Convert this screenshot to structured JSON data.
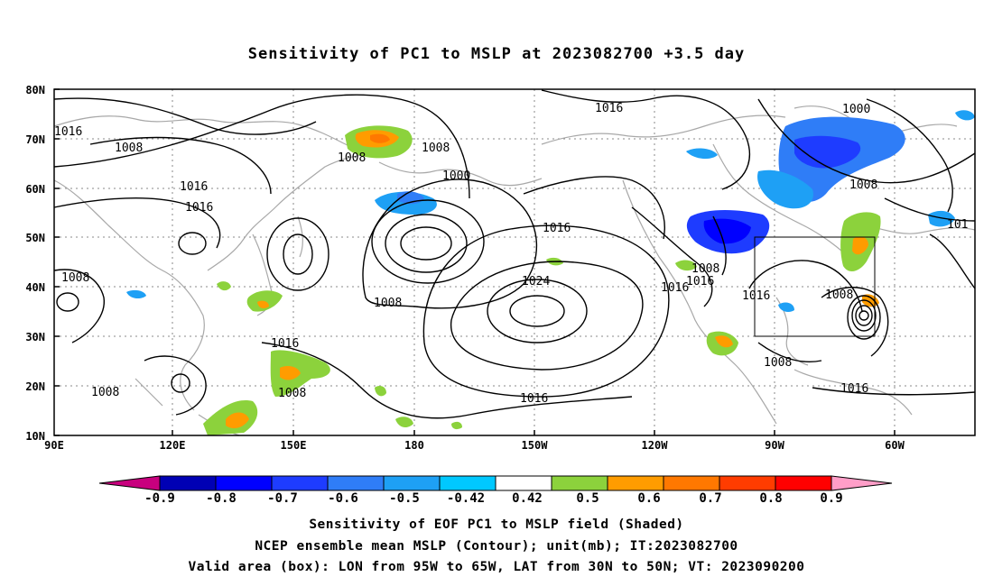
{
  "title": "Sensitivity of PC1 to MSLP at 2023082700 +3.5 day",
  "lat_ticks": [
    "80N",
    "70N",
    "60N",
    "50N",
    "40N",
    "30N",
    "20N",
    "10N"
  ],
  "lon_ticks": [
    "90E",
    "120E",
    "150E",
    "180",
    "150W",
    "120W",
    "90W",
    "60W"
  ],
  "contour_labels": [
    "1016",
    "1008",
    "1008",
    "1016",
    "1016",
    "1008",
    "1008",
    "1016",
    "1008",
    "1008",
    "1000",
    "1008",
    "1016",
    "1024",
    "1016",
    "1016",
    "1008",
    "1016",
    "1016",
    "1000",
    "1008",
    "1016",
    "1008",
    "1008",
    "1016",
    "101"
  ],
  "colorbar": {
    "labels": [
      "-0.9",
      "-0.8",
      "-0.7",
      "-0.6",
      "-0.5",
      "-0.42",
      "0.42",
      "0.5",
      "0.6",
      "0.7",
      "0.8",
      "0.9"
    ],
    "colors": [
      "#c8007e",
      "#0000b4",
      "#0000ff",
      "#1e3cff",
      "#2f7df7",
      "#1ea0f5",
      "#00c8ff",
      "#ffffff",
      "#8cd23c",
      "#ff9c00",
      "#ff7800",
      "#ff3c00",
      "#ff0000",
      "#ff9ec8"
    ]
  },
  "captions": [
    "Sensitivity of EOF PC1 to MSLP field (Shaded)",
    "NCEP ensemble mean MSLP (Contour); unit(mb); IT:2023082700",
    "Valid area (box): LON from 95W to 65W, LAT from 30N to 50N; VT: 2023090200"
  ]
}
